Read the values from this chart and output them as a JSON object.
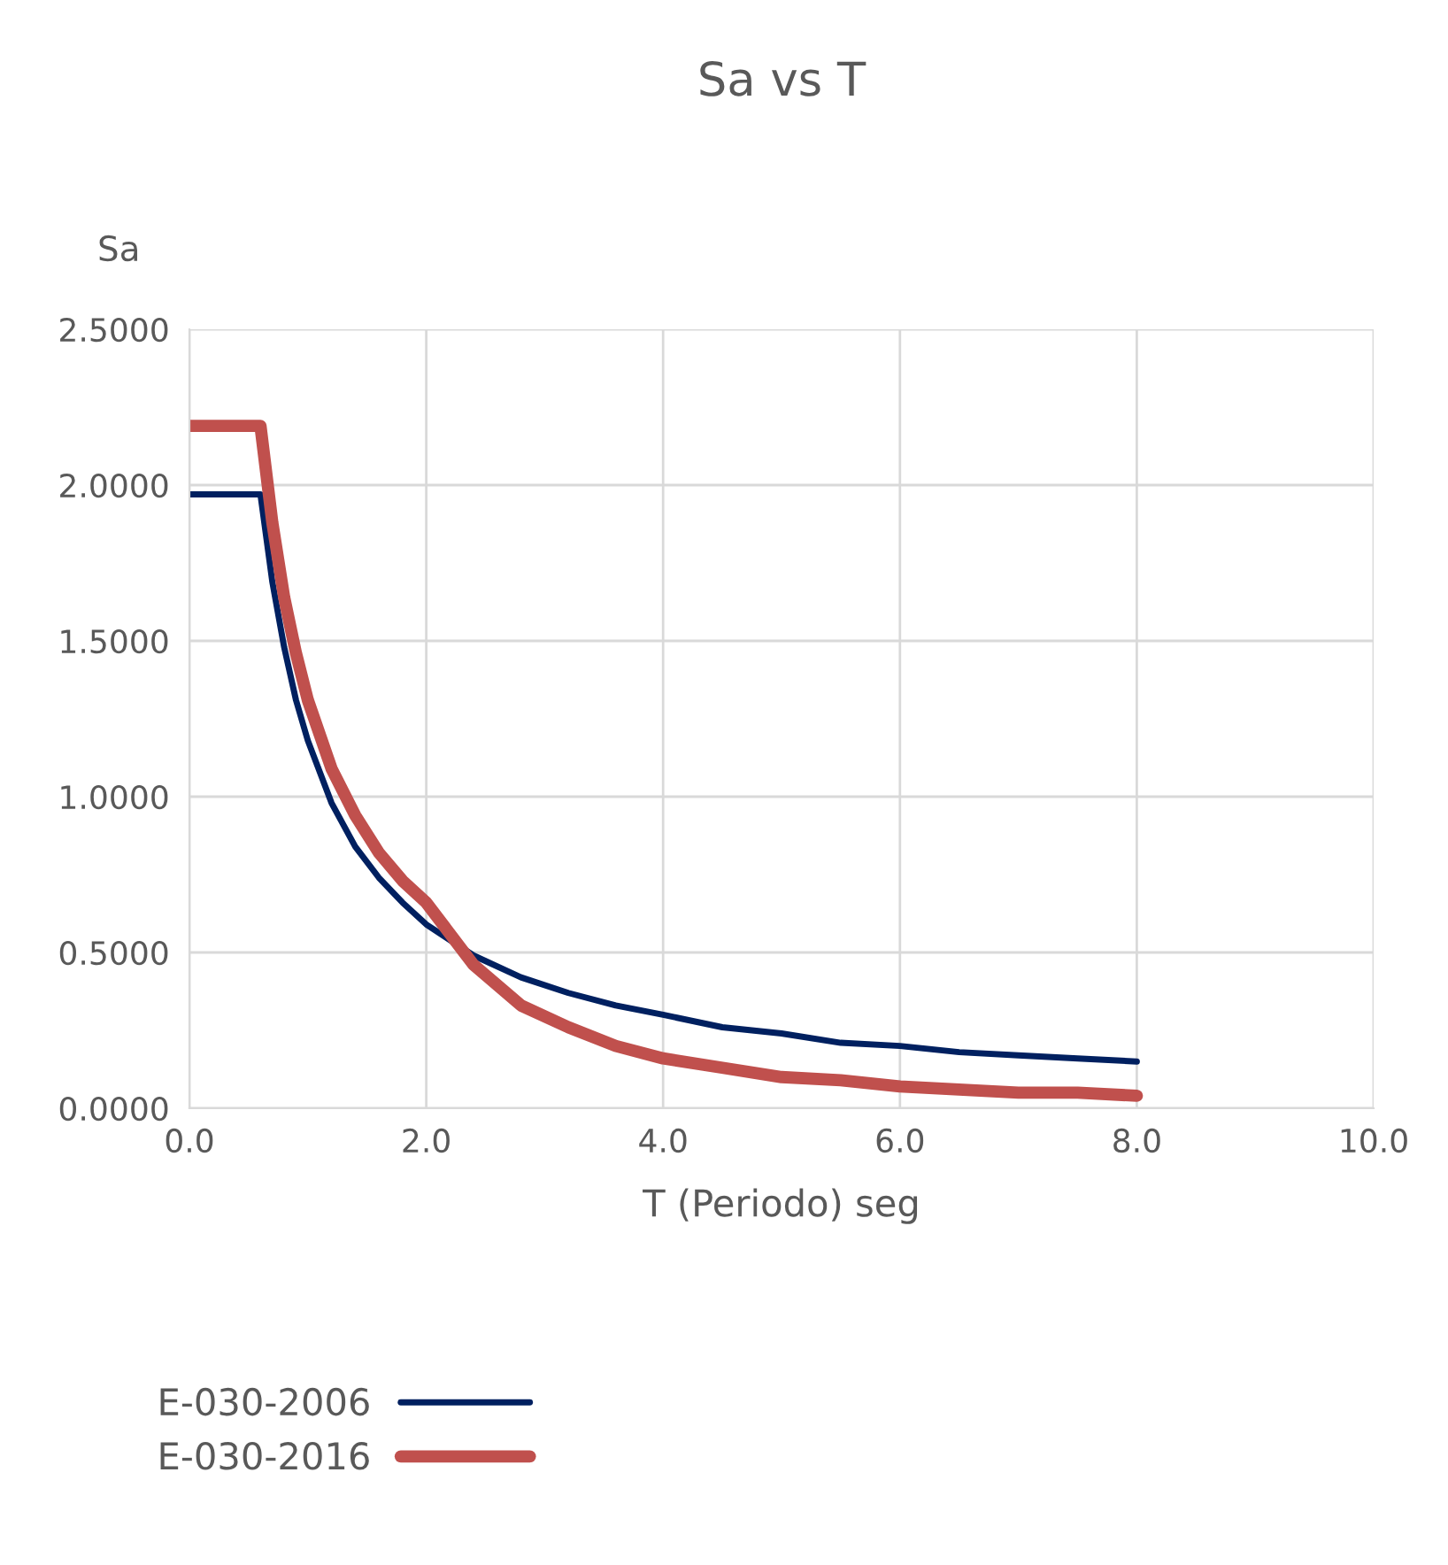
{
  "chart_data": {
    "type": "line",
    "title": "Sa vs T",
    "xlabel": "T (Periodo) seg",
    "ylabel": "Sa",
    "series": [
      {
        "name": "E-030-2006",
        "color": "#002060",
        "x": [
          0,
          0.5,
          0.6,
          0.7,
          0.8,
          0.9,
          1.0,
          1.2,
          1.4,
          1.6,
          1.8,
          2.0,
          2.4,
          2.8,
          3.2,
          3.6,
          4.0,
          4.5,
          5.0,
          5.5,
          6.0,
          6.5,
          7.0,
          7.5,
          8.0
        ],
        "values": [
          1.97,
          1.97,
          1.97,
          1.69,
          1.48,
          1.31,
          1.18,
          0.98,
          0.84,
          0.74,
          0.66,
          0.59,
          0.49,
          0.42,
          0.37,
          0.33,
          0.3,
          0.26,
          0.24,
          0.21,
          0.2,
          0.18,
          0.17,
          0.16,
          0.15
        ]
      },
      {
        "name": "E-030-2016",
        "color": "#c0504d",
        "x": [
          0,
          0.5,
          0.6,
          0.7,
          0.8,
          0.9,
          1.0,
          1.2,
          1.4,
          1.6,
          1.8,
          2.0,
          2.4,
          2.8,
          3.2,
          3.6,
          4.0,
          4.5,
          5.0,
          5.5,
          6.0,
          6.5,
          7.0,
          7.5,
          8.0
        ],
        "values": [
          2.19,
          2.19,
          2.19,
          1.88,
          1.64,
          1.46,
          1.31,
          1.09,
          0.94,
          0.82,
          0.73,
          0.66,
          0.46,
          0.33,
          0.26,
          0.2,
          0.16,
          0.13,
          0.1,
          0.09,
          0.07,
          0.06,
          0.05,
          0.05,
          0.04
        ]
      }
    ],
    "xlim": [
      0,
      10
    ],
    "xticks": [
      {
        "value": 0,
        "label": "0.0"
      },
      {
        "value": 2,
        "label": "2.0"
      },
      {
        "value": 4,
        "label": "4.0"
      },
      {
        "value": 6,
        "label": "6.0"
      },
      {
        "value": 8,
        "label": "8.0"
      },
      {
        "value": 10,
        "label": "10.0"
      }
    ],
    "ylim": [
      0,
      2.5
    ],
    "yticks": [
      {
        "value": 0,
        "label": "0.0000"
      },
      {
        "value": 0.5,
        "label": "0.5000"
      },
      {
        "value": 1,
        "label": "1.0000"
      },
      {
        "value": 1.5,
        "label": "1.5000"
      },
      {
        "value": 2,
        "label": "2.0000"
      },
      {
        "value": 2.5,
        "label": "2.5000"
      }
    ],
    "grid": true,
    "legend": "bottom left",
    "marker": "none",
    "line_style": "solid"
  }
}
